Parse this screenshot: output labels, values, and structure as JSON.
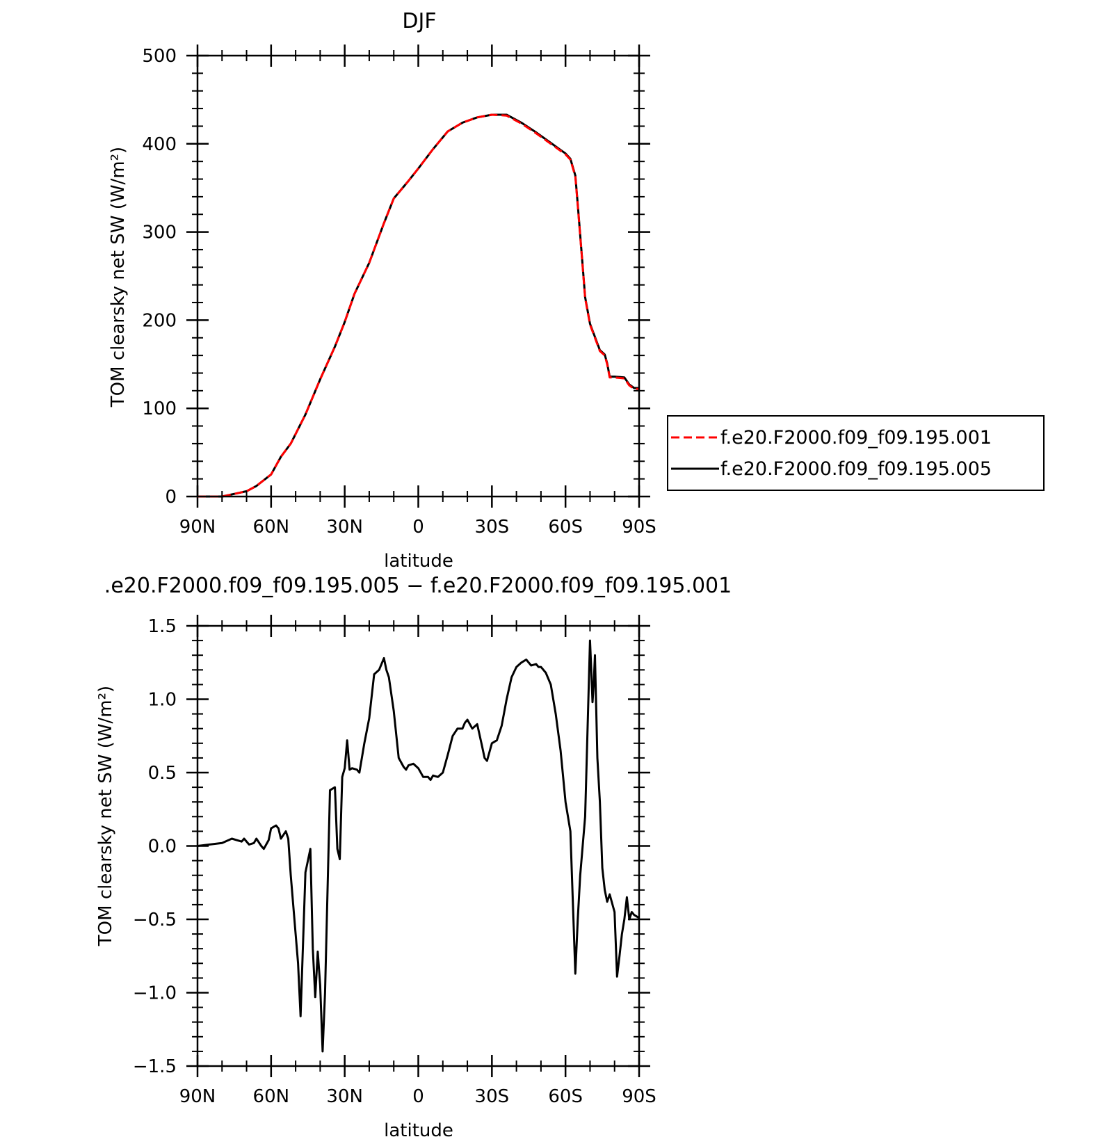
{
  "chart_data": [
    {
      "type": "line",
      "title": "DJF",
      "xlabel": "latitude",
      "ylabel": "TOM clearsky net SW (W/m²)",
      "xlim": [
        -90,
        90
      ],
      "ylim": [
        0,
        500
      ],
      "x_ticks": [
        -90,
        -60,
        -30,
        0,
        30,
        60,
        90
      ],
      "x_tick_labels": [
        "90N",
        "60N",
        "30N",
        "0",
        "30S",
        "60S",
        "90S"
      ],
      "y_ticks": [
        0,
        100,
        200,
        300,
        400,
        500
      ],
      "y_tick_labels": [
        "0",
        "100",
        "200",
        "300",
        "400",
        "500"
      ],
      "grid": false,
      "legend": "right",
      "series": [
        {
          "name": "f.e20.F2000.f09_f09.195.001",
          "color": "#ff0000",
          "dash": "dashed",
          "x": [
            -90,
            -80,
            -75,
            -70,
            -66,
            -60,
            -56,
            -52,
            -46,
            -40,
            -34,
            -30,
            -26,
            -20,
            -14,
            -10,
            -4,
            0,
            6,
            12,
            18,
            24,
            30,
            36,
            42,
            48,
            54,
            58,
            60,
            62,
            64,
            65,
            67,
            68,
            70,
            72,
            74,
            76,
            77,
            78,
            80,
            84,
            86,
            88,
            90
          ],
          "y": [
            0,
            0,
            3,
            6,
            12,
            25,
            45,
            60,
            93,
            133,
            170,
            198,
            230,
            265,
            310,
            338,
            358,
            372,
            394,
            414,
            424,
            430,
            433,
            432,
            423,
            412,
            400,
            392,
            388,
            382,
            363,
            330,
            260,
            225,
            195,
            180,
            165,
            160,
            150,
            135,
            135,
            134,
            126,
            122,
            122
          ]
        },
        {
          "name": "f.e20.F2000.f09_f09.195.005",
          "color": "#000000",
          "dash": "solid",
          "x": [
            -90,
            -80,
            -75,
            -70,
            -66,
            -60,
            -56,
            -52,
            -46,
            -40,
            -34,
            -30,
            -26,
            -20,
            -14,
            -10,
            -4,
            0,
            6,
            12,
            18,
            24,
            30,
            36,
            42,
            48,
            54,
            58,
            60,
            62,
            64,
            65,
            67,
            68,
            70,
            72,
            74,
            76,
            77,
            78,
            80,
            84,
            86,
            88,
            90
          ],
          "y": [
            0,
            0,
            3,
            6,
            12,
            25,
            45,
            60,
            93,
            133,
            170,
            198,
            230,
            265,
            310,
            338,
            358,
            372,
            394,
            414,
            424,
            430,
            433,
            433,
            424,
            413,
            401,
            393,
            389,
            383,
            364,
            331,
            261,
            226,
            196,
            181,
            166,
            161,
            151,
            136,
            136,
            135,
            127,
            123,
            123
          ]
        }
      ]
    },
    {
      "type": "line",
      "title": ".e20.F2000.f09_f09.195.005 − f.e20.F2000.f09_f09.195.001",
      "xlabel": "latitude",
      "ylabel": "TOM clearsky net SW (W/m²)",
      "xlim": [
        -90,
        90
      ],
      "ylim": [
        -1.5,
        1.5
      ],
      "x_ticks": [
        -90,
        -60,
        -30,
        0,
        30,
        60,
        90
      ],
      "x_tick_labels": [
        "90N",
        "60N",
        "30N",
        "0",
        "30S",
        "60S",
        "90S"
      ],
      "y_ticks": [
        -1.5,
        -1.0,
        -0.5,
        0.0,
        0.5,
        1.0,
        1.5
      ],
      "y_tick_labels": [
        "−1.5",
        "−1.0",
        "−0.5",
        "0.0",
        "0.5",
        "1.0",
        "1.5"
      ],
      "grid": false,
      "series": [
        {
          "color": "#000000",
          "x": [
            -90,
            -80,
            -76,
            -72,
            -71,
            -69,
            -67,
            -66,
            -64,
            -63,
            -61,
            -60,
            -58,
            -57,
            -56,
            -54,
            -53,
            -52,
            -50,
            -49,
            -48,
            -46,
            -44,
            -43,
            -42,
            -41,
            -40,
            -39,
            -38,
            -37,
            -36,
            -34,
            -33,
            -32,
            -31,
            -30,
            -29,
            -28,
            -27,
            -25,
            -24,
            -22,
            -20,
            -18,
            -16,
            -14,
            -13,
            -12,
            -10,
            -8,
            -6,
            -5,
            -4,
            -2,
            0,
            2,
            4,
            5,
            6,
            8,
            10,
            12,
            14,
            16,
            18,
            19,
            20,
            22,
            24,
            26,
            27,
            28,
            30,
            32,
            34,
            36,
            38,
            40,
            42,
            44,
            46,
            48,
            49,
            50,
            52,
            54,
            56,
            58,
            60,
            62,
            64,
            65,
            66,
            68,
            70,
            70.5,
            71,
            71.5,
            72,
            73,
            74,
            75,
            76,
            77,
            78,
            80,
            81,
            82,
            83,
            84,
            85,
            86,
            87,
            88,
            90
          ],
          "y": [
            0.0,
            0.02,
            0.05,
            0.03,
            0.05,
            0.01,
            0.02,
            0.05,
            0.0,
            -0.02,
            0.04,
            0.12,
            0.14,
            0.12,
            0.05,
            0.1,
            0.05,
            -0.2,
            -0.6,
            -0.8,
            -1.16,
            -0.18,
            -0.02,
            -0.7,
            -1.03,
            -0.72,
            -0.95,
            -1.4,
            -1.0,
            -0.3,
            0.38,
            0.4,
            -0.02,
            -0.09,
            0.47,
            0.53,
            0.72,
            0.52,
            0.53,
            0.52,
            0.5,
            0.7,
            0.87,
            1.17,
            1.2,
            1.28,
            1.2,
            1.15,
            0.92,
            0.6,
            0.54,
            0.52,
            0.55,
            0.56,
            0.53,
            0.47,
            0.47,
            0.45,
            0.48,
            0.47,
            0.5,
            0.62,
            0.75,
            0.8,
            0.8,
            0.84,
            0.86,
            0.8,
            0.83,
            0.68,
            0.6,
            0.58,
            0.7,
            0.72,
            0.82,
            1.0,
            1.15,
            1.22,
            1.25,
            1.27,
            1.23,
            1.24,
            1.22,
            1.22,
            1.18,
            1.1,
            0.9,
            0.65,
            0.3,
            0.1,
            -0.87,
            -0.5,
            -0.2,
            0.2,
            1.4,
            1.2,
            0.98,
            1.1,
            1.3,
            0.6,
            0.3,
            -0.15,
            -0.3,
            -0.38,
            -0.33,
            -0.45,
            -0.89,
            -0.75,
            -0.6,
            -0.5,
            -0.35,
            -0.5,
            -0.45,
            -0.47,
            -0.49
          ]
        }
      ]
    }
  ]
}
